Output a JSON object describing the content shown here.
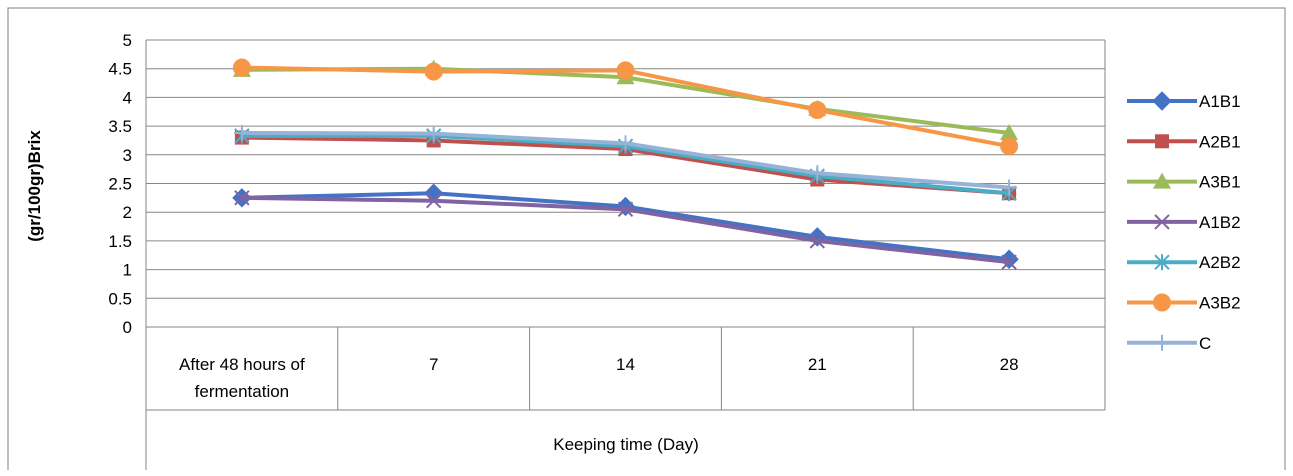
{
  "chart_data": {
    "type": "line",
    "title": "",
    "xlabel": "Keeping time (Day)",
    "ylabel": "(gr/100gr)Brix",
    "ylim": [
      0,
      5
    ],
    "yticks": [
      "0",
      "0.5",
      "1",
      "1.5",
      "2",
      "2.5",
      "3",
      "3.5",
      "4",
      "4.5",
      "5"
    ],
    "categories": [
      [
        "After 48 hours of",
        "fermentation"
      ],
      [
        "7"
      ],
      [
        "14"
      ],
      [
        "21"
      ],
      [
        "28"
      ]
    ],
    "grid": true,
    "legend_position": "right",
    "series": [
      {
        "name": "A1B1",
        "marker": "diamond",
        "color": "#4472C4",
        "values": [
          2.25,
          2.33,
          2.1,
          1.57,
          1.18
        ]
      },
      {
        "name": "A2B1",
        "marker": "square",
        "color": "#C0504D",
        "values": [
          3.3,
          3.25,
          3.1,
          2.57,
          2.33
        ]
      },
      {
        "name": "A3B1",
        "marker": "triangle",
        "color": "#9BBB59",
        "values": [
          4.48,
          4.5,
          4.35,
          3.8,
          3.38
        ]
      },
      {
        "name": "A1B2",
        "marker": "x",
        "color": "#8064A2",
        "values": [
          2.25,
          2.2,
          2.05,
          1.5,
          1.13
        ]
      },
      {
        "name": "A2B2",
        "marker": "star",
        "color": "#4BACC6",
        "values": [
          3.33,
          3.33,
          3.15,
          2.63,
          2.33
        ]
      },
      {
        "name": "A3B2",
        "marker": "circle",
        "color": "#F79646",
        "values": [
          4.52,
          4.45,
          4.47,
          3.78,
          3.15
        ]
      },
      {
        "name": "C",
        "marker": "plus",
        "color": "#95B3D7",
        "values": [
          3.38,
          3.37,
          3.2,
          2.68,
          2.43
        ]
      }
    ]
  }
}
